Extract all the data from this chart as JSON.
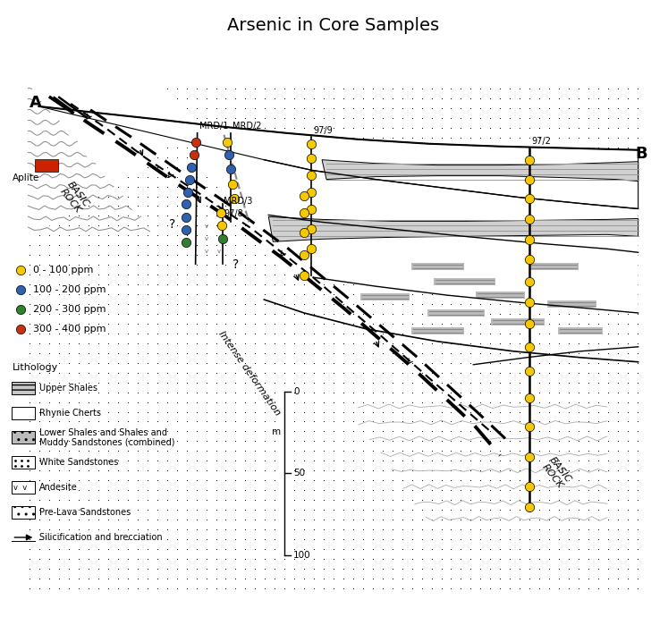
{
  "title": "Arsenic in Core Samples",
  "title_fontsize": 14,
  "colors": {
    "yellow": "#F5C800",
    "blue": "#3060B0",
    "green": "#308030",
    "red": "#C83010"
  },
  "legend_arsenic": [
    {
      "label": "0 - 100 ppm",
      "color": "#F5C800"
    },
    {
      "label": "100 - 200 ppm",
      "color": "#3060B0"
    },
    {
      "label": "200 - 300 ppm",
      "color": "#308030"
    },
    {
      "label": "300 - 400 ppm",
      "color": "#C83010"
    }
  ],
  "lith_labels": [
    "Upper Shales",
    "Rhynie Cherts",
    "Lower Shales and Shales and\nMuddy Sandstones (combined)",
    "White Sandstones",
    "Andesite",
    "Pre-Lava Sandstones",
    "Silicification and brecciation"
  ],
  "scale_labels": [
    "0",
    "50",
    "100"
  ],
  "A_label": "A",
  "B_label": "B",
  "aplite_label": "Aplite",
  "basic_rock_label": "BASIC\nROCK",
  "intense_deformation_label": "Intense deformation",
  "borehole_labels": [
    "MRD/1",
    "MRD/2",
    "MRD/3",
    "97/8",
    "97/9",
    "97/2"
  ]
}
